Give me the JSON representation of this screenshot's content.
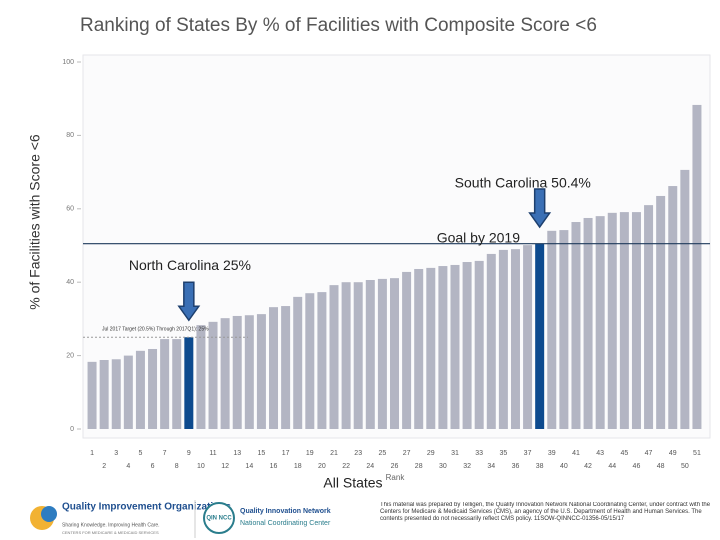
{
  "chart_data": {
    "type": "bar",
    "title": "Ranking of States By % of Facilities with Composite Score <6",
    "y_label": "% of Facilities with Score <6",
    "x_label": "All States",
    "x_sublabel": "Rank",
    "categories": [
      "1",
      "2",
      "3",
      "4",
      "5",
      "6",
      "7",
      "8",
      "9",
      "10",
      "11",
      "12",
      "13",
      "14",
      "15",
      "16",
      "17",
      "18",
      "19",
      "20",
      "21",
      "22",
      "23",
      "24",
      "25",
      "26",
      "27",
      "28",
      "29",
      "30",
      "31",
      "32",
      "33",
      "34",
      "35",
      "36",
      "37",
      "38",
      "39",
      "40",
      "41",
      "42",
      "43",
      "44",
      "45",
      "46",
      "47",
      "48",
      "49",
      "50",
      "51"
    ],
    "values": [
      18.3,
      18.8,
      19,
      20,
      21.3,
      21.8,
      24.5,
      24.5,
      25,
      28.3,
      29.2,
      30.2,
      30.8,
      31,
      31.3,
      33.2,
      33.5,
      36,
      37,
      37.3,
      39.2,
      40,
      40,
      40.6,
      40.9,
      41.1,
      42.8,
      43.6,
      43.9,
      44.4,
      44.7,
      45.5,
      45.8,
      47.7,
      48.8,
      49,
      50.1,
      50.4,
      54,
      54.2,
      56.4,
      57.5,
      58,
      58.9,
      59.1,
      59.1,
      61,
      63.5,
      66.2,
      70.6,
      88.3
    ],
    "color": "#b3b5c3",
    "highlight": {
      "color": "#0d4a8e",
      "categories": [
        "9",
        "38"
      ]
    },
    "ylim": [
      0,
      100
    ],
    "yticks": [
      0,
      20,
      40,
      60,
      80,
      100
    ],
    "goal": {
      "value": 50.5,
      "label": "Goal by 2019",
      "color": "#1f3b5c"
    },
    "target": {
      "value": 25,
      "label": "Jul 2017 Target (20.5%) Through 2017Q1): 25%"
    },
    "annotations": [
      {
        "text": "North Carolina 25%",
        "category": "9"
      },
      {
        "text": "South Carolina 50.4%",
        "category": "38"
      }
    ]
  },
  "footer": {
    "qio_title": "Quality Improvement Organizations",
    "qio_tagline": "Sharing Knowledge. Improving Health Care.",
    "qio_cms": "CENTERS FOR MEDICARE & MEDICAID SERVICES",
    "qin_badge": "QIN NCC",
    "qin_title": "Quality Innovation Network",
    "qin_subtitle": "National Coordinating Center",
    "disclaimer": "This material was prepared by Telligen, the Quality Innovation Network National Coordinating Center, under contract with the Centers for Medicare & Medicaid Services (CMS), an agency of the U.S. Department of Health and Human Services. The contents presented do not necessarily reflect CMS policy. 11SOW-QINNCC-01356-05/15/17"
  }
}
